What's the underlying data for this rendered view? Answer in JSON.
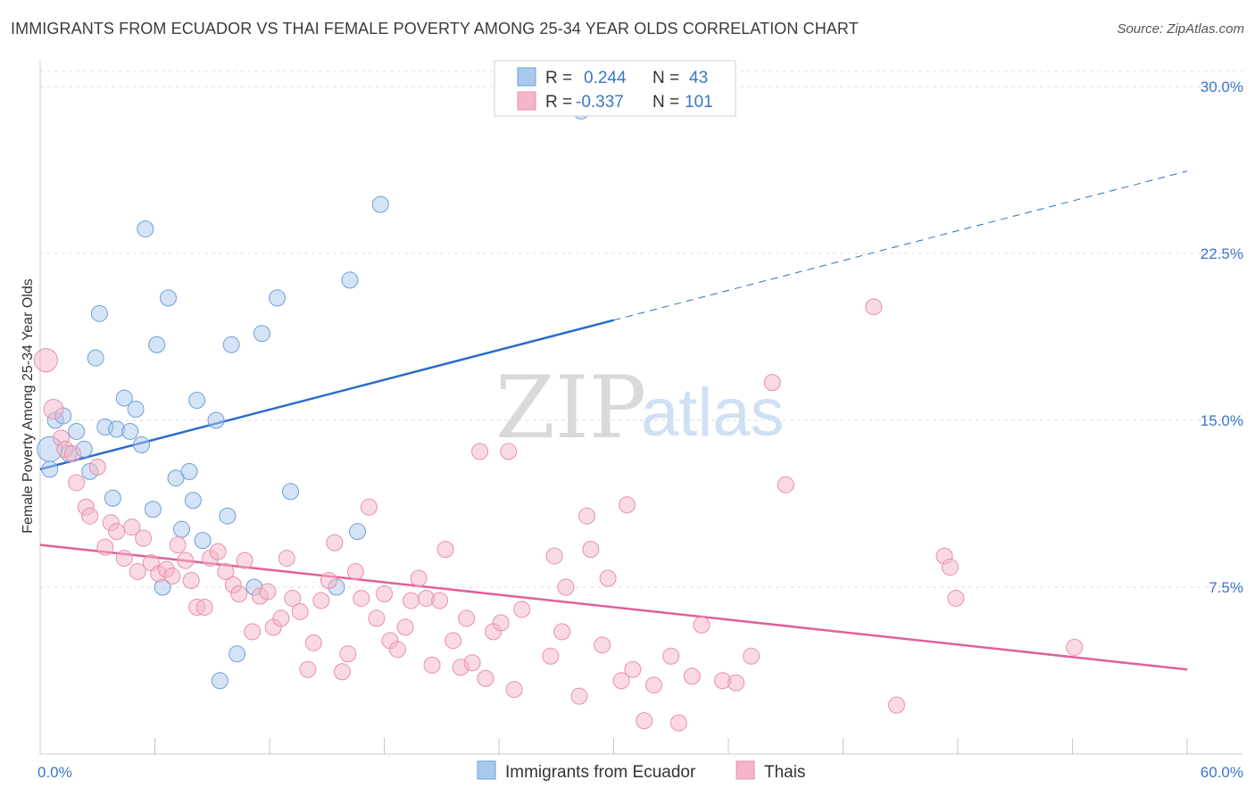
{
  "title": "IMMIGRANTS FROM ECUADOR VS THAI FEMALE POVERTY AMONG 25-34 YEAR OLDS CORRELATION CHART",
  "source": "Source: ZipAtlas.com",
  "watermark": {
    "zip": "ZIP",
    "atlas": "atlas"
  },
  "legend": {
    "r_label": "R =",
    "n_label": "N =",
    "rows": [
      {
        "r": "0.244",
        "n": "43",
        "color": "#a9c8ee"
      },
      {
        "r": "-0.337",
        "n": "101",
        "color": "#f4b6c8"
      }
    ]
  },
  "bottom_legend": [
    {
      "label": "Immigrants from Ecuador",
      "color": "#a9c8ee"
    },
    {
      "label": "Thais",
      "color": "#f4b6c8"
    }
  ],
  "chart_data": {
    "type": "scatter",
    "title": "IMMIGRANTS FROM ECUADOR VS THAI FEMALE POVERTY AMONG 25-34 YEAR OLDS CORRELATION CHART",
    "xlabel": "",
    "ylabel": "Female Poverty Among 25-34 Year Olds",
    "xlim": [
      0,
      60
    ],
    "ylim": [
      0,
      30
    ],
    "y_ticks": [
      7.5,
      15.0,
      22.5,
      30.0
    ],
    "y_tick_labels": [
      "7.5%",
      "15.0%",
      "22.5%",
      "30.0%"
    ],
    "x_tick_labels": [
      "0.0%",
      "60.0%"
    ],
    "grid": "horizontal dashed",
    "series": [
      {
        "name": "Immigrants from Ecuador",
        "color": "#a9c8ee",
        "stroke": "#6f9fd8",
        "trend": {
          "x0": 0,
          "y0": 12.8,
          "x1": 30,
          "y1": 19.5,
          "dashed_to_x": 60,
          "dashed_to_y": 26.2,
          "color": "#2a6ccc"
        },
        "points": [
          [
            0.5,
            13.7,
            14
          ],
          [
            0.5,
            12.8,
            9
          ],
          [
            0.8,
            15.0,
            9
          ],
          [
            1.2,
            15.2,
            9
          ],
          [
            1.5,
            13.5,
            9
          ],
          [
            1.9,
            14.5,
            9
          ],
          [
            2.3,
            13.7,
            9
          ],
          [
            2.6,
            12.7,
            9
          ],
          [
            2.9,
            17.8,
            9
          ],
          [
            3.1,
            19.8,
            9
          ],
          [
            3.4,
            14.7,
            9
          ],
          [
            3.8,
            11.5,
            9
          ],
          [
            4.0,
            14.6,
            9
          ],
          [
            4.4,
            16.0,
            9
          ],
          [
            4.7,
            14.5,
            9
          ],
          [
            5.0,
            15.5,
            9
          ],
          [
            5.3,
            13.9,
            9
          ],
          [
            5.5,
            23.6,
            9
          ],
          [
            5.9,
            11.0,
            9
          ],
          [
            6.1,
            18.4,
            9
          ],
          [
            6.4,
            7.5,
            9
          ],
          [
            6.7,
            20.5,
            9
          ],
          [
            7.1,
            12.4,
            9
          ],
          [
            7.4,
            10.1,
            9
          ],
          [
            7.8,
            12.7,
            9
          ],
          [
            8.0,
            11.4,
            9
          ],
          [
            8.2,
            15.9,
            9
          ],
          [
            8.5,
            9.6,
            9
          ],
          [
            9.2,
            15.0,
            9
          ],
          [
            9.8,
            10.7,
            9
          ],
          [
            10.0,
            18.4,
            9
          ],
          [
            10.3,
            4.5,
            9
          ],
          [
            9.4,
            3.3,
            9
          ],
          [
            11.2,
            7.5,
            9
          ],
          [
            11.6,
            18.9,
            9
          ],
          [
            12.4,
            20.5,
            9
          ],
          [
            13.1,
            11.8,
            9
          ],
          [
            15.5,
            7.5,
            9
          ],
          [
            16.2,
            21.3,
            9
          ],
          [
            16.6,
            10.0,
            9
          ],
          [
            17.8,
            24.7,
            9
          ],
          [
            28.3,
            28.9,
            9
          ]
        ]
      },
      {
        "name": "Thais",
        "color": "#f4b6c8",
        "stroke": "#ea8fab",
        "trend": {
          "x0": 0,
          "y0": 9.4,
          "x1": 60,
          "y1": 3.8,
          "color": "#e0609a"
        },
        "points": [
          [
            0.3,
            17.7,
            13
          ],
          [
            0.7,
            15.5,
            11
          ],
          [
            1.1,
            14.2,
            9
          ],
          [
            1.3,
            13.7,
            9
          ],
          [
            1.7,
            13.5,
            9
          ],
          [
            1.9,
            12.2,
            9
          ],
          [
            2.4,
            11.1,
            9
          ],
          [
            2.6,
            10.7,
            9
          ],
          [
            3.0,
            12.9,
            9
          ],
          [
            3.4,
            9.3,
            9
          ],
          [
            3.7,
            10.4,
            9
          ],
          [
            4.0,
            10.0,
            9
          ],
          [
            4.4,
            8.8,
            9
          ],
          [
            4.8,
            10.2,
            9
          ],
          [
            5.1,
            8.2,
            9
          ],
          [
            5.4,
            9.7,
            9
          ],
          [
            5.8,
            8.6,
            9
          ],
          [
            6.2,
            8.1,
            9
          ],
          [
            6.6,
            8.3,
            9
          ],
          [
            6.9,
            8.0,
            9
          ],
          [
            7.2,
            9.4,
            9
          ],
          [
            7.6,
            8.7,
            9
          ],
          [
            7.9,
            7.8,
            9
          ],
          [
            8.2,
            6.6,
            9
          ],
          [
            8.6,
            6.6,
            9
          ],
          [
            8.9,
            8.8,
            9
          ],
          [
            9.3,
            9.1,
            9
          ],
          [
            9.7,
            8.2,
            9
          ],
          [
            10.1,
            7.6,
            9
          ],
          [
            10.4,
            7.2,
            9
          ],
          [
            10.7,
            8.7,
            9
          ],
          [
            11.1,
            5.5,
            9
          ],
          [
            11.5,
            7.1,
            9
          ],
          [
            11.9,
            7.3,
            9
          ],
          [
            12.2,
            5.7,
            9
          ],
          [
            12.6,
            6.1,
            9
          ],
          [
            12.9,
            8.8,
            9
          ],
          [
            13.2,
            7.0,
            9
          ],
          [
            13.6,
            6.4,
            9
          ],
          [
            14.0,
            3.8,
            9
          ],
          [
            14.3,
            5.0,
            9
          ],
          [
            14.7,
            6.9,
            9
          ],
          [
            15.1,
            7.8,
            9
          ],
          [
            15.4,
            9.5,
            9
          ],
          [
            15.8,
            3.7,
            9
          ],
          [
            16.1,
            4.5,
            9
          ],
          [
            16.5,
            8.2,
            9
          ],
          [
            16.8,
            7.0,
            9
          ],
          [
            17.2,
            11.1,
            9
          ],
          [
            17.6,
            6.1,
            9
          ],
          [
            18.0,
            7.2,
            9
          ],
          [
            18.3,
            5.1,
            9
          ],
          [
            18.7,
            4.7,
            9
          ],
          [
            19.1,
            5.7,
            9
          ],
          [
            19.4,
            6.9,
            9
          ],
          [
            19.8,
            7.9,
            9
          ],
          [
            20.2,
            7.0,
            9
          ],
          [
            20.5,
            4.0,
            9
          ],
          [
            20.9,
            6.9,
            9
          ],
          [
            21.2,
            9.2,
            9
          ],
          [
            21.6,
            5.1,
            9
          ],
          [
            22.0,
            3.9,
            9
          ],
          [
            22.3,
            6.1,
            9
          ],
          [
            22.6,
            4.1,
            9
          ],
          [
            23.0,
            13.6,
            9
          ],
          [
            23.3,
            3.4,
            9
          ],
          [
            23.7,
            5.5,
            9
          ],
          [
            24.1,
            5.9,
            9
          ],
          [
            24.5,
            13.6,
            9
          ],
          [
            24.8,
            2.9,
            9
          ],
          [
            25.2,
            6.5,
            9
          ],
          [
            26.7,
            4.4,
            9
          ],
          [
            26.9,
            8.9,
            9
          ],
          [
            27.3,
            5.5,
            9
          ],
          [
            27.5,
            7.5,
            9
          ],
          [
            28.2,
            2.6,
            9
          ],
          [
            28.6,
            10.7,
            9
          ],
          [
            28.8,
            9.2,
            9
          ],
          [
            29.4,
            4.9,
            9
          ],
          [
            29.7,
            7.9,
            9
          ],
          [
            30.4,
            3.3,
            9
          ],
          [
            30.7,
            11.2,
            9
          ],
          [
            31.0,
            3.8,
            9
          ],
          [
            31.6,
            1.5,
            9
          ],
          [
            32.1,
            3.1,
            9
          ],
          [
            33.0,
            4.4,
            9
          ],
          [
            33.4,
            1.4,
            9
          ],
          [
            34.1,
            3.5,
            9
          ],
          [
            34.6,
            5.8,
            9
          ],
          [
            35.7,
            3.3,
            9
          ],
          [
            36.4,
            3.2,
            9
          ],
          [
            37.2,
            4.4,
            9
          ],
          [
            38.3,
            16.7,
            9
          ],
          [
            39.0,
            12.1,
            9
          ],
          [
            43.6,
            20.1,
            9
          ],
          [
            44.8,
            2.2,
            9
          ],
          [
            47.3,
            8.9,
            9
          ],
          [
            47.6,
            8.4,
            9
          ],
          [
            47.9,
            7.0,
            9
          ],
          [
            54.1,
            4.8,
            9
          ]
        ]
      }
    ]
  }
}
